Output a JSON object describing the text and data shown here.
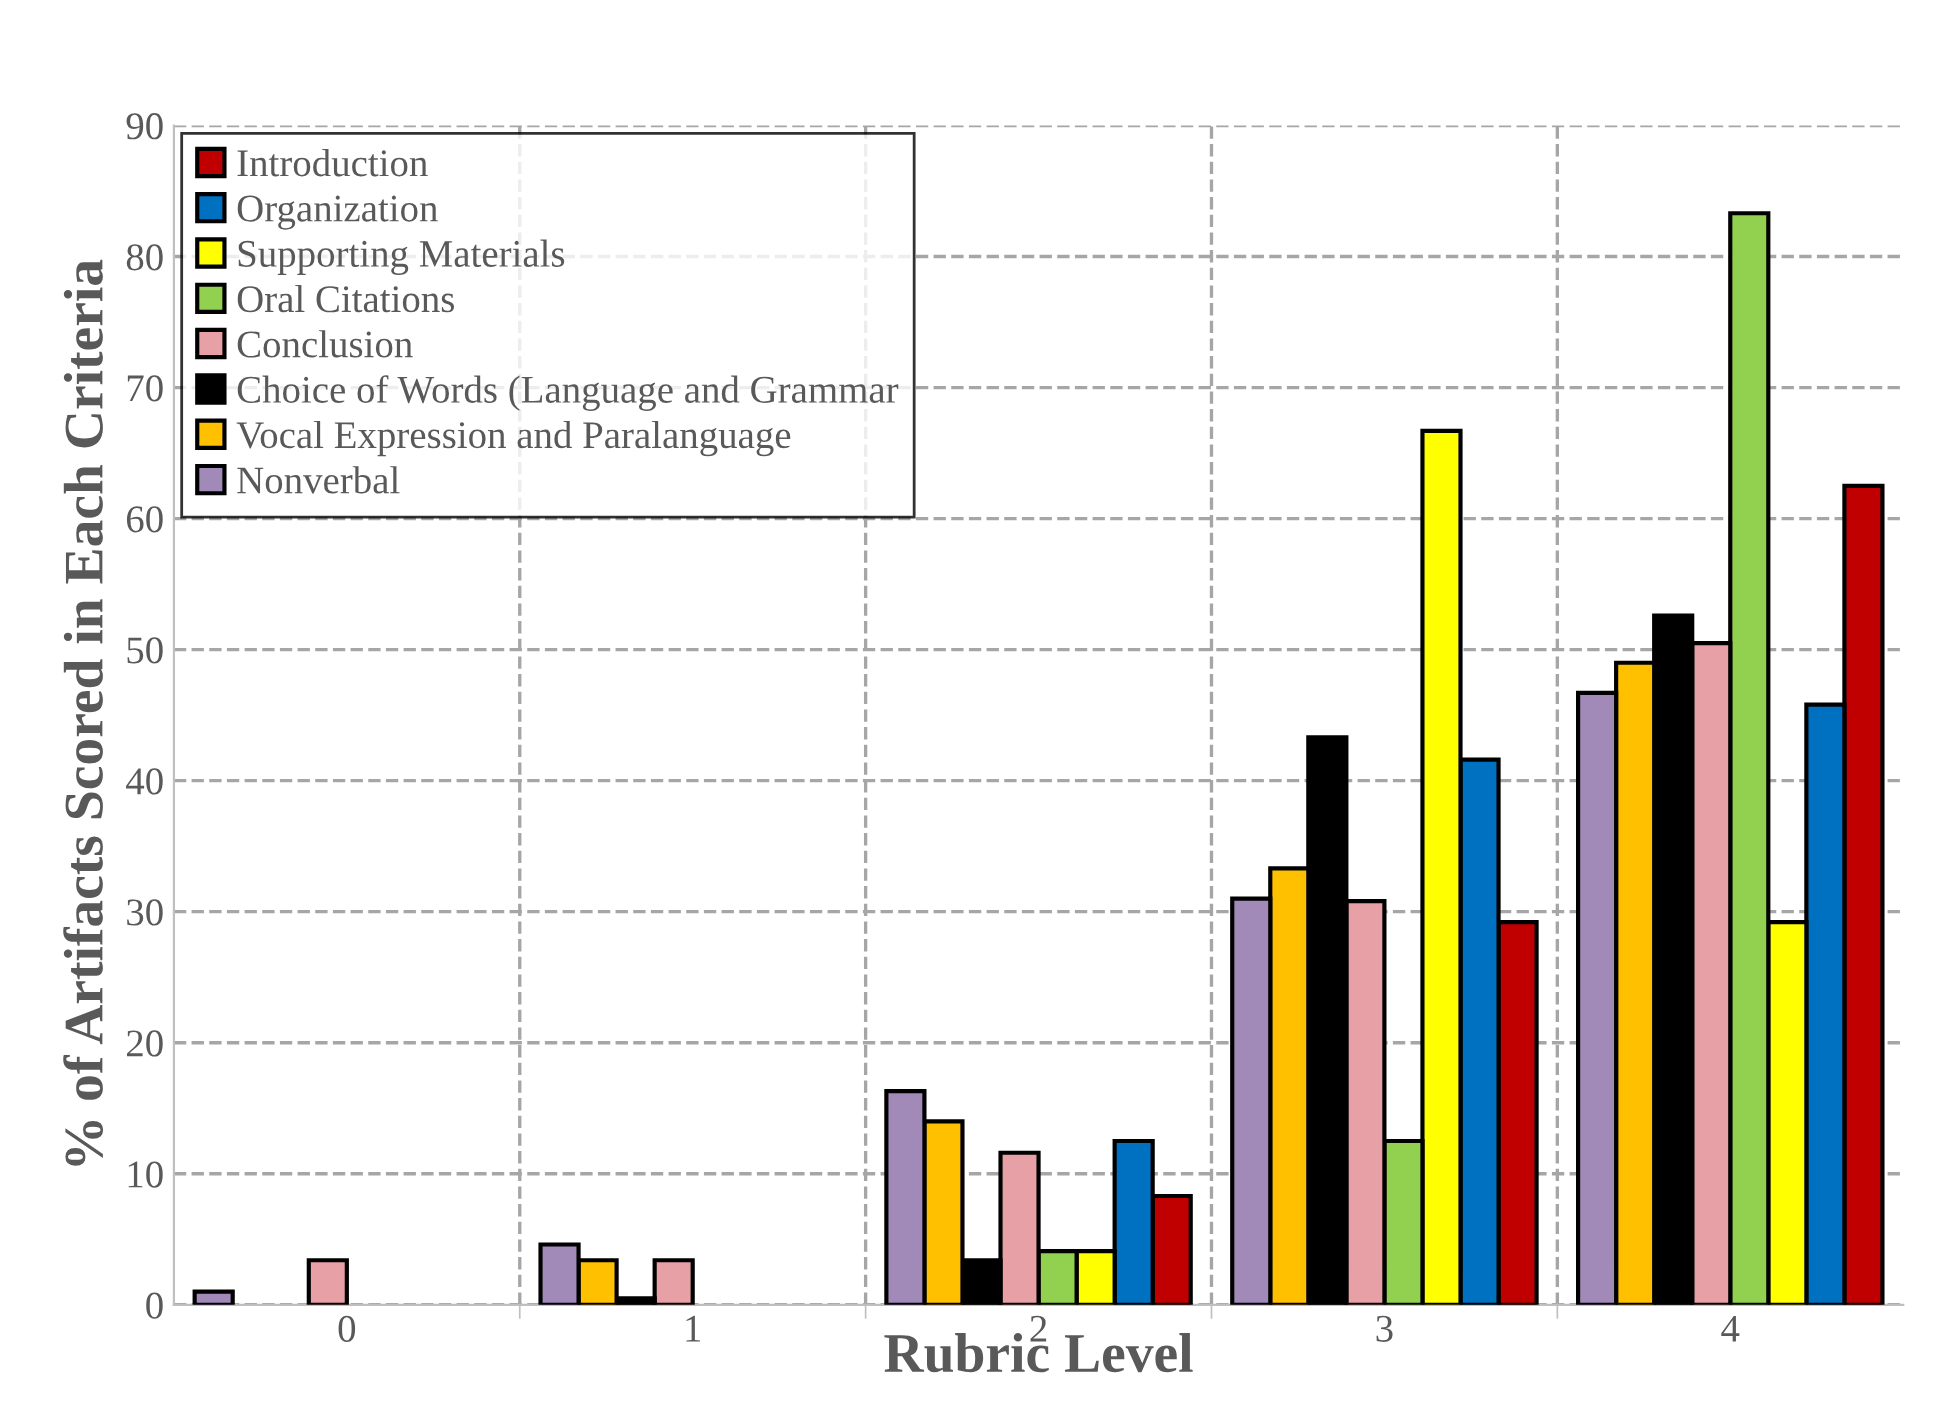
{
  "chart_data": {
    "type": "bar",
    "xlabel": "Rubric Level",
    "ylabel": "% of Artifacts Scored in Each Criteria",
    "categories": [
      "0",
      "1",
      "2",
      "3",
      "4"
    ],
    "series": [
      {
        "name": "Introduction",
        "color": "#c00000",
        "values": [
          null,
          null,
          8.3,
          29.2,
          62.5
        ]
      },
      {
        "name": "Organization",
        "color": "#0070c0",
        "values": [
          null,
          null,
          12.5,
          41.6,
          45.8
        ]
      },
      {
        "name": "Supporting Materials",
        "color": "#ffff00",
        "values": [
          null,
          null,
          4.1,
          66.7,
          29.2
        ]
      },
      {
        "name": "Oral Citations",
        "color": "#92d050",
        "values": [
          null,
          null,
          4.1,
          12.5,
          83.3
        ]
      },
      {
        "name": "Conclusion",
        "color": "#e6a0a6",
        "values": [
          3.4,
          3.4,
          11.6,
          30.8,
          50.5
        ]
      },
      {
        "name": "Choice of Words (Language and Grammar",
        "color": "#000000",
        "values": [
          null,
          0.5,
          3.4,
          43.3,
          52.6
        ]
      },
      {
        "name": "Vocal Expression and Paralanguage",
        "color": "#ffc000",
        "values": [
          null,
          3.4,
          14.0,
          33.3,
          49.0
        ]
      },
      {
        "name": "Nonverbal",
        "color": "#a18ab8",
        "values": [
          1.0,
          4.6,
          16.3,
          31.0,
          46.7
        ]
      }
    ],
    "ylim": [
      0,
      90
    ],
    "yticks": [
      0,
      10,
      20,
      30,
      40,
      50,
      60,
      70,
      80,
      90
    ],
    "grid": true,
    "legend": "top left"
  }
}
